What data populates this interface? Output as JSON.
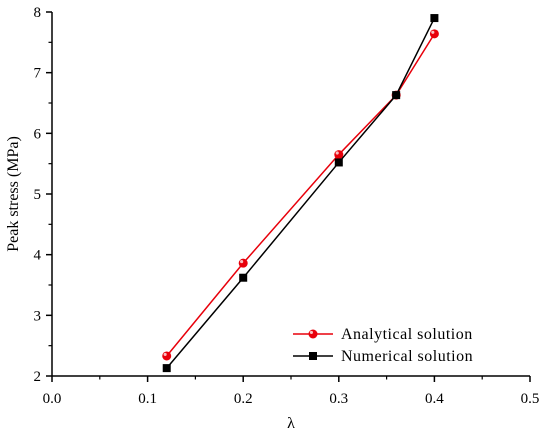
{
  "chart_data": {
    "type": "line",
    "xlabel": "λ",
    "ylabel": "Peak stress (MPa)",
    "xlim": [
      0.0,
      0.5
    ],
    "ylim": [
      2,
      8
    ],
    "xticks": [
      "0.0",
      "0.1",
      "0.2",
      "0.3",
      "0.4",
      "0.5"
    ],
    "yticks": [
      "2",
      "3",
      "4",
      "5",
      "6",
      "7",
      "8"
    ],
    "grid": false,
    "legend_position": "bottom-right",
    "series": [
      {
        "name": "Analytical solution",
        "color": "#e8000b",
        "marker": "circle",
        "x": [
          0.12,
          0.2,
          0.3,
          0.36,
          0.4
        ],
        "y": [
          2.33,
          3.86,
          5.65,
          6.63,
          7.64
        ]
      },
      {
        "name": "Numerical solution",
        "color": "#000000",
        "marker": "square",
        "x": [
          0.12,
          0.2,
          0.3,
          0.36,
          0.4
        ],
        "y": [
          2.13,
          3.62,
          5.52,
          6.63,
          7.9
        ]
      }
    ]
  }
}
